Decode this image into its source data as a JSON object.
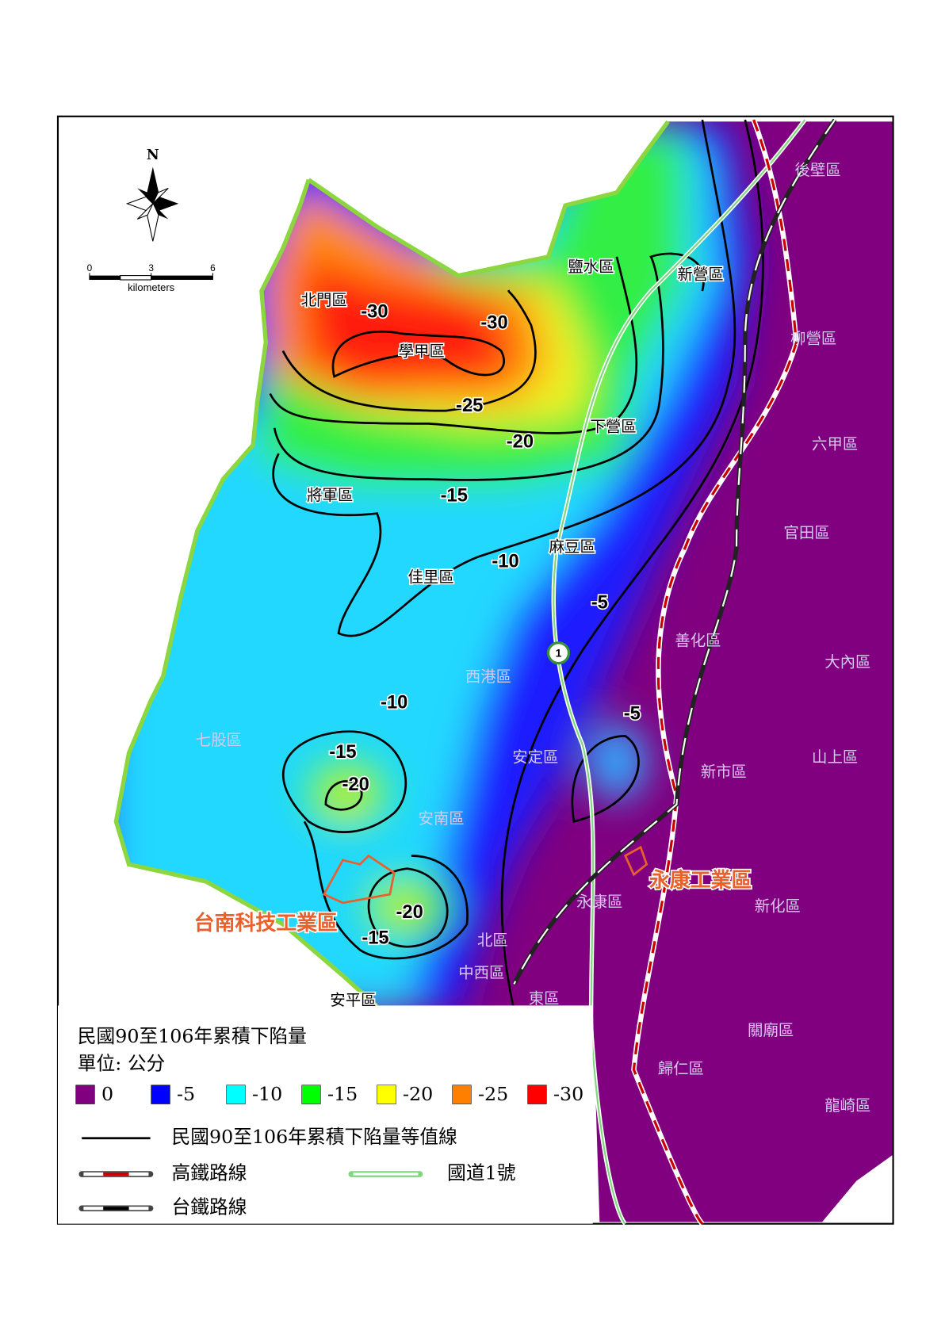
{
  "compass": {
    "north": "N"
  },
  "scale_bar": {
    "ticks": [
      0,
      3,
      6
    ],
    "unit": "kilometers"
  },
  "districts": [
    "後壁區",
    "鹽水區",
    "新營區",
    "北門區",
    "學甲區",
    "柳營區",
    "下營區",
    "六甲區",
    "將軍區",
    "麻豆區",
    "官田區",
    "佳里區",
    "善化區",
    "大內區",
    "西港區",
    "七股區",
    "安定區",
    "新市區",
    "山上區",
    "安南區",
    "永康區",
    "新化區",
    "北區",
    "中西區",
    "東區",
    "安平區",
    "關廟區",
    "歸仁區",
    "龍崎區"
  ],
  "contour_labels": [
    -30,
    -30,
    -25,
    -20,
    -15,
    -10,
    -5,
    -10,
    -5,
    -15,
    -20,
    -20,
    -15
  ],
  "highway_marker": "1",
  "industrial_parks": [
    "台南科技工業區",
    "永康工業區"
  ],
  "legend": {
    "title": "民國90至106年累積下陷量",
    "unit": "單位: 公分",
    "classes": [
      {
        "label": 0,
        "color": "#800080"
      },
      {
        "label": -5,
        "color": "#0000ff"
      },
      {
        "label": -10,
        "color": "#00ffff"
      },
      {
        "label": -15,
        "color": "#00ff00"
      },
      {
        "label": -20,
        "color": "#ffff00"
      },
      {
        "label": -25,
        "color": "#ff8000"
      },
      {
        "label": -30,
        "color": "#ff0000"
      }
    ],
    "lines": [
      "民國90至106年累積下陷量等值線",
      "高鐵路線",
      "國道1號",
      "台鐵路線"
    ]
  }
}
